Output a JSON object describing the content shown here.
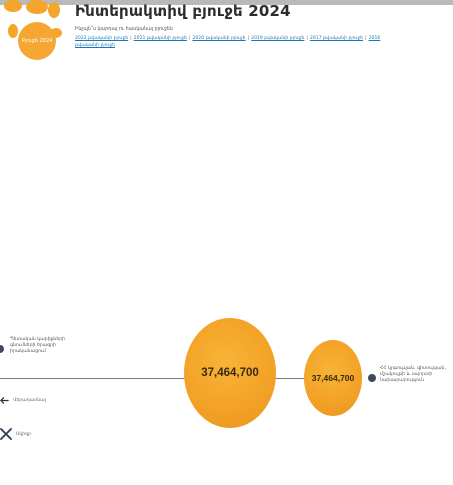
{
  "page": {
    "title": "Ինտերակտիվ բյուջե 2024",
    "subtitle": "Ինչպե՞ս կարդալ ու հասկանալ բյուջեն",
    "logo_text": "Բյուջե 2024",
    "year_links": [
      "2022 թվականի բյուջե",
      "2021 թվականի բյուջե",
      "2020 թվականի բյուջե",
      "2019 թվականի բյուջե",
      "2017 թվականի բյուջե",
      "2016 թվականի բյուջե"
    ],
    "year_separator": "|"
  },
  "diagram": {
    "left_label": "Պետական կարիքների գնումների ծրագրի իրականացում",
    "center_value": "37,464,700",
    "right_value": "37,464,700",
    "right_label": "ՀՀ կրթության, գիտության, մշակույթի և սպորտի նախարարություն"
  },
  "controls": {
    "back_label": "Վերադառնալ",
    "reset_label": "Սկիզբ"
  },
  "colors": {
    "bubble": "#f2a126",
    "link": "#1d76b5",
    "node": "#3c4a5c"
  }
}
